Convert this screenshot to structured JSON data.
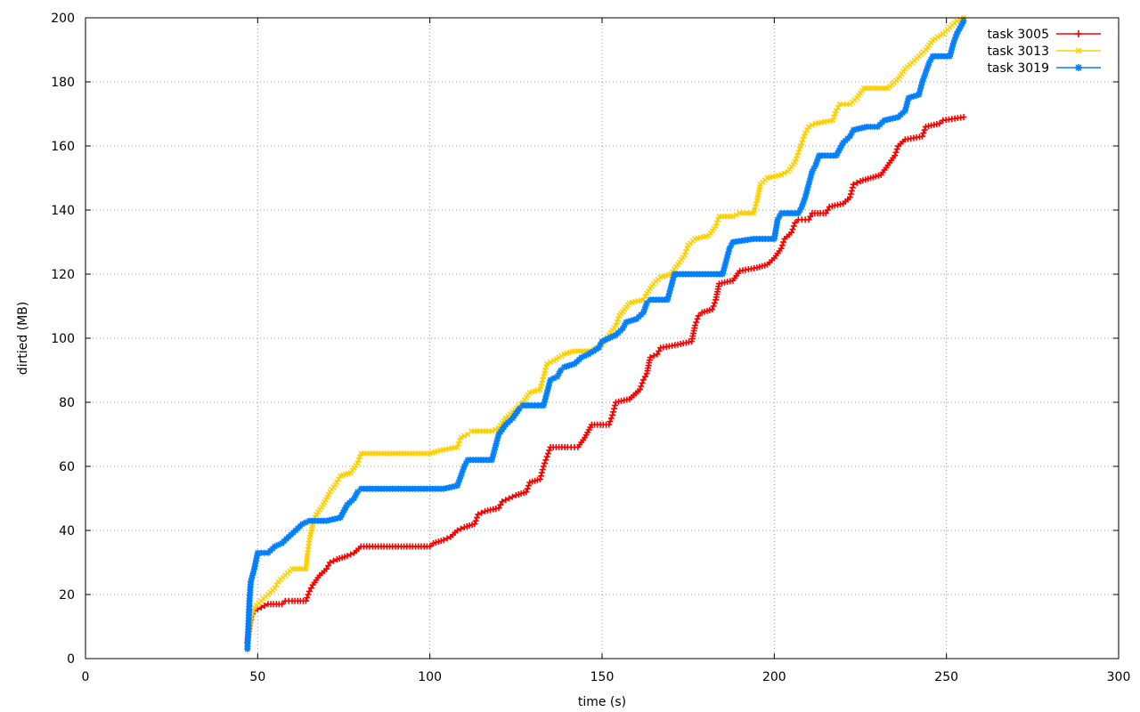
{
  "chart_data": {
    "type": "line",
    "title": "",
    "xlabel": "time (s)",
    "ylabel": "dirtied (MB)",
    "xlim": [
      0,
      300
    ],
    "ylim": [
      0,
      200
    ],
    "x_ticks": [
      0,
      50,
      100,
      150,
      200,
      250,
      300
    ],
    "y_ticks": [
      0,
      20,
      40,
      60,
      80,
      100,
      120,
      140,
      160,
      180,
      200
    ],
    "grid": true,
    "legend": "top-right",
    "series": [
      {
        "name": "task 3005",
        "color": "#ff0000",
        "marker": "plus",
        "points": [
          [
            47,
            5
          ],
          [
            48,
            13
          ],
          [
            49,
            15
          ],
          [
            51,
            16
          ],
          [
            53,
            17
          ],
          [
            57,
            17
          ],
          [
            58,
            18
          ],
          [
            60,
            18
          ],
          [
            64,
            18
          ],
          [
            65,
            21
          ],
          [
            66,
            23
          ],
          [
            68,
            26
          ],
          [
            70,
            28
          ],
          [
            71,
            30
          ],
          [
            73,
            31
          ],
          [
            76,
            32
          ],
          [
            78,
            33
          ],
          [
            80,
            35
          ],
          [
            90,
            35
          ],
          [
            100,
            35
          ],
          [
            101,
            36
          ],
          [
            104,
            37
          ],
          [
            106,
            38
          ],
          [
            108,
            40
          ],
          [
            110,
            41
          ],
          [
            113,
            42
          ],
          [
            114,
            45
          ],
          [
            116,
            46
          ],
          [
            120,
            47
          ],
          [
            121,
            49
          ],
          [
            123,
            50
          ],
          [
            125,
            51
          ],
          [
            128,
            52
          ],
          [
            129,
            55
          ],
          [
            132,
            56
          ],
          [
            133,
            60
          ],
          [
            134,
            63
          ],
          [
            135,
            66
          ],
          [
            140,
            66
          ],
          [
            143,
            66
          ],
          [
            145,
            69
          ],
          [
            147,
            73
          ],
          [
            152,
            73
          ],
          [
            153,
            76
          ],
          [
            154,
            80
          ],
          [
            158,
            81
          ],
          [
            161,
            84
          ],
          [
            162,
            87
          ],
          [
            163,
            89
          ],
          [
            164,
            94
          ],
          [
            166,
            95
          ],
          [
            167,
            97
          ],
          [
            172,
            98
          ],
          [
            176,
            99
          ],
          [
            177,
            104
          ],
          [
            178,
            107
          ],
          [
            179,
            108
          ],
          [
            182,
            109
          ],
          [
            183,
            112
          ],
          [
            184,
            117
          ],
          [
            188,
            118
          ],
          [
            190,
            121
          ],
          [
            195,
            122
          ],
          [
            198,
            123
          ],
          [
            200,
            125
          ],
          [
            202,
            128
          ],
          [
            203,
            131
          ],
          [
            205,
            133
          ],
          [
            206,
            136
          ],
          [
            207,
            137
          ],
          [
            210,
            137
          ],
          [
            211,
            139
          ],
          [
            215,
            139
          ],
          [
            216,
            141
          ],
          [
            220,
            142
          ],
          [
            222,
            144
          ],
          [
            223,
            148
          ],
          [
            225,
            149
          ],
          [
            228,
            150
          ],
          [
            231,
            151
          ],
          [
            233,
            154
          ],
          [
            235,
            157
          ],
          [
            236,
            160
          ],
          [
            238,
            162
          ],
          [
            243,
            163
          ],
          [
            244,
            166
          ],
          [
            248,
            167
          ],
          [
            249,
            168
          ],
          [
            255,
            169
          ]
        ]
      },
      {
        "name": "task 3013",
        "color": "#ffd000",
        "marker": "cross",
        "points": [
          [
            47,
            5
          ],
          [
            48,
            12
          ],
          [
            49,
            16
          ],
          [
            51,
            18
          ],
          [
            53,
            20
          ],
          [
            55,
            22
          ],
          [
            56,
            24
          ],
          [
            58,
            26
          ],
          [
            60,
            28
          ],
          [
            64,
            28
          ],
          [
            64.5,
            33
          ],
          [
            65,
            37
          ],
          [
            66,
            42
          ],
          [
            67,
            45
          ],
          [
            69,
            48
          ],
          [
            71,
            52
          ],
          [
            73,
            55
          ],
          [
            74,
            57
          ],
          [
            77,
            58
          ],
          [
            79,
            61
          ],
          [
            80,
            64
          ],
          [
            90,
            64
          ],
          [
            100,
            64
          ],
          [
            103,
            65
          ],
          [
            108,
            66
          ],
          [
            109,
            69
          ],
          [
            111,
            70
          ],
          [
            112,
            71
          ],
          [
            118,
            71
          ],
          [
            120,
            72
          ],
          [
            122,
            75
          ],
          [
            124,
            77
          ],
          [
            127,
            80
          ],
          [
            129,
            83
          ],
          [
            132,
            84
          ],
          [
            133,
            88
          ],
          [
            134,
            92
          ],
          [
            136,
            93
          ],
          [
            139,
            95
          ],
          [
            142,
            96
          ],
          [
            147,
            96
          ],
          [
            150,
            98
          ],
          [
            152,
            101
          ],
          [
            154,
            104
          ],
          [
            155,
            107
          ],
          [
            158,
            111
          ],
          [
            162,
            112
          ],
          [
            163,
            114
          ],
          [
            165,
            117
          ],
          [
            167,
            119
          ],
          [
            170,
            120
          ],
          [
            172,
            123
          ],
          [
            174,
            126
          ],
          [
            175,
            129
          ],
          [
            177,
            131
          ],
          [
            181,
            132
          ],
          [
            183,
            135
          ],
          [
            184,
            138
          ],
          [
            188,
            138
          ],
          [
            190,
            139
          ],
          [
            194,
            139
          ],
          [
            195,
            143
          ],
          [
            196,
            148
          ],
          [
            198,
            150
          ],
          [
            202,
            151
          ],
          [
            204,
            152
          ],
          [
            206,
            155
          ],
          [
            207,
            158
          ],
          [
            208,
            161
          ],
          [
            209,
            164
          ],
          [
            210,
            166
          ],
          [
            212,
            167
          ],
          [
            217,
            168
          ],
          [
            218,
            171
          ],
          [
            219,
            173
          ],
          [
            222,
            173
          ],
          [
            224,
            175
          ],
          [
            226,
            178
          ],
          [
            233,
            178
          ],
          [
            236,
            181
          ],
          [
            238,
            184
          ],
          [
            240,
            186
          ],
          [
            242,
            188
          ],
          [
            244,
            190
          ],
          [
            246,
            193
          ],
          [
            249,
            195
          ],
          [
            251,
            197
          ],
          [
            253,
            199
          ],
          [
            255,
            200
          ]
        ]
      },
      {
        "name": "task 3019",
        "color": "#0080ff",
        "marker": "star",
        "points": [
          [
            47,
            3
          ],
          [
            47.3,
            10
          ],
          [
            47.6,
            18
          ],
          [
            48,
            24
          ],
          [
            49,
            28
          ],
          [
            50,
            33
          ],
          [
            53,
            33
          ],
          [
            55,
            35
          ],
          [
            57,
            36
          ],
          [
            59,
            38
          ],
          [
            61,
            40
          ],
          [
            63,
            42
          ],
          [
            65,
            43
          ],
          [
            70,
            43
          ],
          [
            74,
            44
          ],
          [
            76,
            48
          ],
          [
            78,
            50
          ],
          [
            79,
            52
          ],
          [
            80,
            53
          ],
          [
            90,
            53
          ],
          [
            100,
            53
          ],
          [
            104,
            53
          ],
          [
            108,
            54
          ],
          [
            109,
            57
          ],
          [
            110,
            60
          ],
          [
            111,
            62
          ],
          [
            118,
            62
          ],
          [
            119,
            66
          ],
          [
            120,
            70
          ],
          [
            122,
            73
          ],
          [
            124,
            75
          ],
          [
            126,
            78
          ],
          [
            127,
            79
          ],
          [
            133,
            79
          ],
          [
            134,
            83
          ],
          [
            135,
            87
          ],
          [
            137,
            88
          ],
          [
            138,
            90
          ],
          [
            139,
            91
          ],
          [
            142,
            92
          ],
          [
            144,
            94
          ],
          [
            146,
            95
          ],
          [
            149,
            97
          ],
          [
            150,
            99
          ],
          [
            154,
            101
          ],
          [
            156,
            103
          ],
          [
            157,
            105
          ],
          [
            160,
            106
          ],
          [
            162,
            108
          ],
          [
            163,
            111
          ],
          [
            164,
            112
          ],
          [
            169,
            112
          ],
          [
            170,
            116
          ],
          [
            171,
            120
          ],
          [
            180,
            120
          ],
          [
            185,
            120
          ],
          [
            186,
            124
          ],
          [
            187,
            128
          ],
          [
            188,
            130
          ],
          [
            194,
            131
          ],
          [
            200,
            131
          ],
          [
            201,
            137
          ],
          [
            202,
            139
          ],
          [
            207,
            139
          ],
          [
            208,
            141
          ],
          [
            209,
            144
          ],
          [
            210,
            148
          ],
          [
            211,
            152
          ],
          [
            212,
            154
          ],
          [
            213,
            157
          ],
          [
            218,
            157
          ],
          [
            220,
            161
          ],
          [
            222,
            163
          ],
          [
            223,
            165
          ],
          [
            227,
            166
          ],
          [
            230,
            166
          ],
          [
            232,
            168
          ],
          [
            236,
            169
          ],
          [
            238,
            171
          ],
          [
            239,
            175
          ],
          [
            242,
            176
          ],
          [
            243,
            180
          ],
          [
            244,
            183
          ],
          [
            245,
            186
          ],
          [
            246,
            188
          ],
          [
            251,
            188
          ],
          [
            252,
            192
          ],
          [
            253,
            195
          ],
          [
            255,
            199
          ]
        ]
      }
    ]
  }
}
